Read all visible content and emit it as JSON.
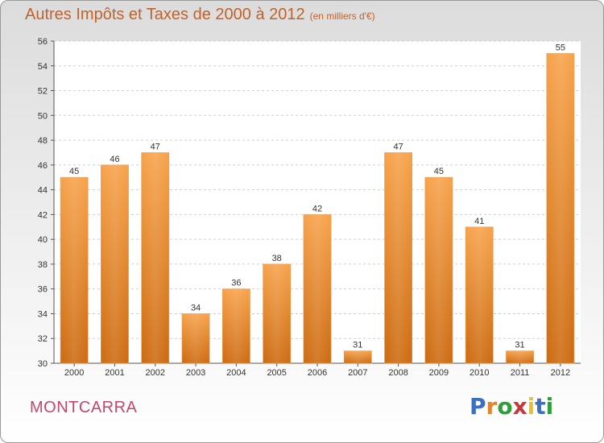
{
  "header": {
    "title": "Autres Impôts et Taxes de 2000 à 2012",
    "unit": "(en milliers d'€)"
  },
  "footer": {
    "commune": "MONTCARRA",
    "brand": "Proxiti",
    "brand_colors": [
      "#3a6fc4",
      "#e8822a",
      "#2e9e3a",
      "#c23a3a",
      "#e8c22a",
      "#3a6fc4",
      "#2e9e3a"
    ]
  },
  "chart_data": {
    "type": "bar",
    "categories": [
      "2000",
      "2001",
      "2002",
      "2003",
      "2004",
      "2005",
      "2006",
      "2007",
      "2008",
      "2009",
      "2010",
      "2011",
      "2012"
    ],
    "values": [
      45,
      46,
      47,
      34,
      36,
      38,
      42,
      31,
      47,
      45,
      41,
      31,
      55
    ],
    "title": "Autres Impôts et Taxes de 2000 à 2012",
    "ylim": [
      30,
      56
    ],
    "yticks": [
      30,
      32,
      34,
      36,
      38,
      40,
      42,
      44,
      46,
      48,
      50,
      52,
      54,
      56
    ],
    "grid": true,
    "bar_color": "#e8872a"
  }
}
